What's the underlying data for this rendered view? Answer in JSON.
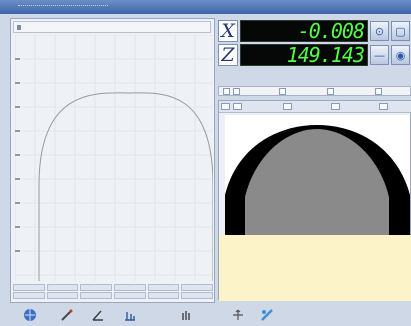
{
  "window": {
    "title": ""
  },
  "dro": {
    "x": {
      "axis": "X",
      "value": "-0.008"
    },
    "z": {
      "axis": "Z",
      "value": "149.143"
    }
  },
  "colors": {
    "readout_bg": "#050807",
    "readout_text": "#53ff45",
    "profile_black": "#000000",
    "profile_gray": "#8a8a8a",
    "info_panel": "#fcf3c8",
    "grid": "#dcdcdc",
    "curve": "#9a9a9a"
  },
  "icons": {
    "dro_x": [
      "zoom-icon",
      "page-icon",
      "corner-icon"
    ],
    "dro_z": [
      "minus-icon",
      "target-icon",
      "corner-icon"
    ],
    "bottom_toolbar": [
      "globe-icon",
      "pen-icon",
      "angle-icon",
      "measure-icon",
      "hand-icon",
      "arrows-icon",
      "tool-icon"
    ]
  }
}
